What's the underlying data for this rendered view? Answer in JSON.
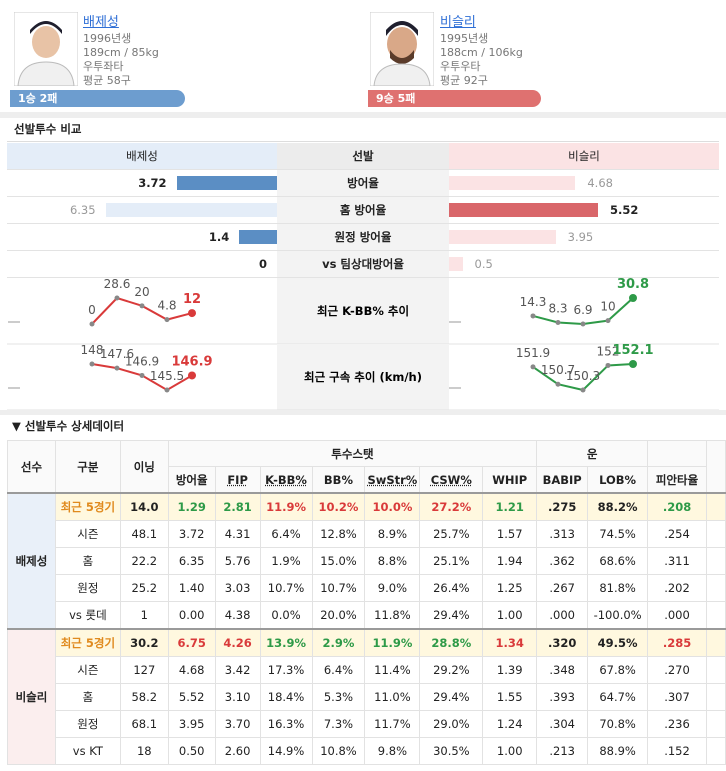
{
  "pitchers": [
    {
      "name": "배제성",
      "born": "1996년생",
      "body": "189cm / 85kg",
      "hand": "우투좌타",
      "avg_pitches": "평균 58구",
      "record": "1승 2패",
      "color": "#6d9dcf"
    },
    {
      "name": "비슬리",
      "born": "1995년생",
      "body": "188cm / 106kg",
      "hand": "우투우타",
      "avg_pitches": "평균 92구",
      "record": "9승 5패",
      "color": "#df7170"
    }
  ],
  "comparison": {
    "title": "선발투수 비교",
    "header": [
      "배제성",
      "선발",
      "비슬리"
    ],
    "rows": [
      {
        "label": "방어율",
        "left": 3.72,
        "right": 4.68
      },
      {
        "label": "홈 방어율",
        "left": 6.35,
        "right": 5.52
      },
      {
        "label": "원정 방어율",
        "left": 1.4,
        "right": 3.95
      },
      {
        "label": "vs 팀상대방어율",
        "left": 0,
        "right": 0.5
      }
    ],
    "trends": [
      {
        "label": "최근 K-BB% 추이",
        "left": [
          0,
          28.6,
          20,
          4.8,
          12
        ],
        "right": [
          14.3,
          8.3,
          6.9,
          10,
          30.8
        ]
      },
      {
        "label": "최근 구속 추이 (km/h)",
        "left": [
          148,
          147.6,
          146.9,
          145.5,
          146.9
        ],
        "right": [
          151.9,
          150.7,
          150.3,
          152,
          152.1
        ]
      }
    ],
    "left_color": "#5b8ec4",
    "left_light": "#e4edf8",
    "right_color": "#d9666a",
    "right_light": "#fbe3e4",
    "left_trend_color": "#d93a3a",
    "right_trend_color": "#2e9a48"
  },
  "details": {
    "title": "선발투수 상세데이터",
    "fixed_headers": [
      "선수",
      "구분",
      "이닝"
    ],
    "groups": [
      {
        "label": "투수스탯",
        "columns": [
          {
            "label": "방어율"
          },
          {
            "label": "FIP",
            "underline": true
          },
          {
            "label": "K-BB%",
            "underline": true
          },
          {
            "label": "BB%"
          },
          {
            "label": "SwStr%",
            "underline": true
          },
          {
            "label": "CSW%",
            "underline": true
          },
          {
            "label": "WHIP"
          }
        ]
      },
      {
        "label": "운",
        "columns": [
          {
            "label": "BABIP"
          },
          {
            "label": "LOB%"
          }
        ]
      }
    ],
    "trailing_columns": [
      "피안타율"
    ],
    "players": [
      {
        "name": "배제성",
        "color": "#e9f0f9",
        "rows": [
          {
            "split": "최근 5경기",
            "highlight": true,
            "cells": [
              "14.0",
              "1.29",
              "2.81",
              "11.9%",
              "10.2%",
              "10.0%",
              "27.2%",
              "1.21",
              ".275",
              "88.2%",
              ".208"
            ],
            "colors": [
              null,
              "#2e9a48",
              "#2e9a48",
              "#d93a3a",
              "#d93a3a",
              "#d93a3a",
              "#d93a3a",
              "#2e9a48",
              null,
              null,
              "#2e9a48"
            ]
          },
          {
            "split": "시즌",
            "cells": [
              "48.1",
              "3.72",
              "4.31",
              "6.4%",
              "12.8%",
              "8.9%",
              "25.7%",
              "1.57",
              ".313",
              "74.5%",
              ".254"
            ]
          },
          {
            "split": "홈",
            "cells": [
              "22.2",
              "6.35",
              "5.76",
              "1.9%",
              "15.0%",
              "8.8%",
              "25.1%",
              "1.94",
              ".362",
              "68.6%",
              ".311"
            ]
          },
          {
            "split": "원정",
            "cells": [
              "25.2",
              "1.40",
              "3.03",
              "10.7%",
              "10.7%",
              "9.0%",
              "26.4%",
              "1.25",
              ".267",
              "81.8%",
              ".202"
            ]
          },
          {
            "split": "vs 롯데",
            "cells": [
              "1",
              "0.00",
              "4.38",
              "0.0%",
              "20.0%",
              "11.8%",
              "29.4%",
              "1.00",
              ".000",
              "-100.0%",
              ".000"
            ]
          }
        ]
      },
      {
        "name": "비슬리",
        "color": "#fbeeee",
        "rows": [
          {
            "split": "최근 5경기",
            "highlight": true,
            "cells": [
              "30.2",
              "6.75",
              "4.26",
              "13.9%",
              "2.9%",
              "11.9%",
              "28.8%",
              "1.34",
              ".320",
              "49.5%",
              ".285"
            ],
            "colors": [
              null,
              "#d93a3a",
              "#d93a3a",
              "#2e9a48",
              "#2e9a48",
              "#2e9a48",
              "#2e9a48",
              "#d93a3a",
              null,
              null,
              "#d93a3a"
            ]
          },
          {
            "split": "시즌",
            "cells": [
              "127",
              "4.68",
              "3.42",
              "17.3%",
              "6.4%",
              "11.4%",
              "29.2%",
              "1.39",
              ".348",
              "67.8%",
              ".270"
            ]
          },
          {
            "split": "홈",
            "cells": [
              "58.2",
              "5.52",
              "3.10",
              "18.4%",
              "5.3%",
              "11.0%",
              "29.4%",
              "1.55",
              ".393",
              "64.7%",
              ".307"
            ]
          },
          {
            "split": "원정",
            "cells": [
              "68.1",
              "3.95",
              "3.70",
              "16.3%",
              "7.3%",
              "11.7%",
              "29.0%",
              "1.24",
              ".304",
              "70.8%",
              ".236"
            ]
          },
          {
            "split": "vs KT",
            "cells": [
              "18",
              "0.50",
              "2.60",
              "14.9%",
              "10.8%",
              "9.8%",
              "30.5%",
              "1.00",
              ".213",
              "88.9%",
              ".152"
            ]
          }
        ]
      }
    ]
  }
}
